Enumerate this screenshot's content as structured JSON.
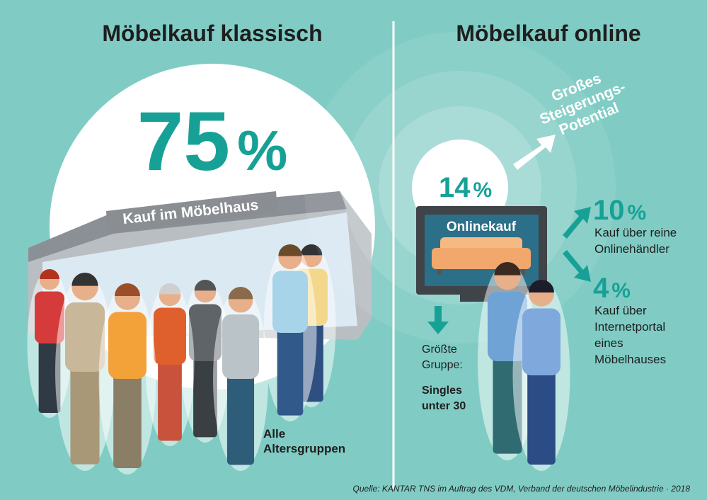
{
  "left": {
    "title": "Möbelkauf klassisch",
    "share": {
      "number": 75,
      "unit": "%"
    },
    "label": "Kauf im Möbelhaus",
    "note": [
      "Alle",
      "Altersgruppen"
    ]
  },
  "right": {
    "title": "Möbelkauf online",
    "potential": [
      "Großes",
      "Steigerungs-",
      "Potential"
    ],
    "share": {
      "number": 14,
      "unit": "%"
    },
    "screen_label": "Onlinekauf",
    "group": [
      "Größte",
      "Gruppe:"
    ],
    "group_value": [
      "Singles",
      "unter 30"
    ],
    "breakdown": [
      {
        "number": 10,
        "unit": "%",
        "label": [
          "Kauf über reine",
          "Onlinehändler"
        ]
      },
      {
        "number": 4,
        "unit": "%",
        "label": [
          "Kauf über",
          "Internetportal",
          "eines",
          "Möbelhauses"
        ]
      }
    ]
  },
  "source": "Quelle: KANTAR TNS im Auftrag des VDM, Verband der deutschen Möbelindustrie · 2018"
}
